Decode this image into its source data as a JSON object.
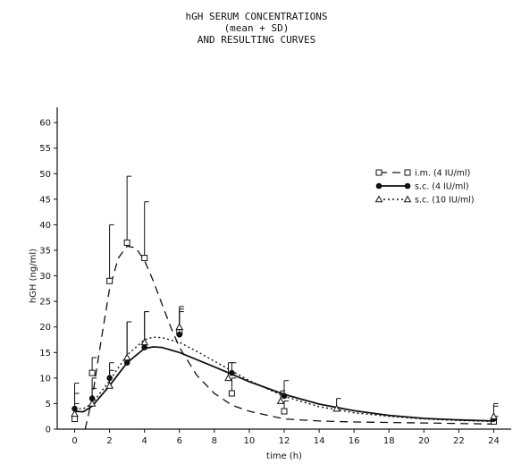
{
  "chart_data": {
    "type": "line",
    "title": [
      "hGH SERUM CONCENTRATIONS",
      "(mean + SD)",
      "AND RESULTING CURVES"
    ],
    "xlabel": "time (h)",
    "ylabel": "hGH (ng/ml)",
    "xlim": [
      -1,
      25
    ],
    "ylim": [
      0,
      63
    ],
    "x_ticks": [
      0,
      2,
      4,
      6,
      8,
      10,
      12,
      14,
      16,
      18,
      20,
      22,
      24
    ],
    "y_ticks": [
      0,
      5,
      10,
      15,
      20,
      25,
      30,
      35,
      40,
      45,
      50,
      55,
      60
    ],
    "legend_position": "top-right",
    "series": [
      {
        "name": "i.m. (4 IU/ml)",
        "marker": "square",
        "line_style": "dashed",
        "points": [
          {
            "x": 0,
            "y": 2,
            "sd": 3
          },
          {
            "x": 1,
            "y": 11,
            "sd": 3
          },
          {
            "x": 2,
            "y": 29,
            "sd": 11
          },
          {
            "x": 3,
            "y": 36.5,
            "sd": 13
          },
          {
            "x": 4,
            "y": 33.5,
            "sd": 11
          },
          {
            "x": 6,
            "y": 19,
            "sd": 5
          },
          {
            "x": 9,
            "y": 7,
            "sd": 3
          },
          {
            "x": 12,
            "y": 3.5,
            "sd": 2
          },
          {
            "x": 24,
            "y": 1.5,
            "sd": 1
          }
        ],
        "curve": [
          [
            0.6,
            0
          ],
          [
            1,
            6
          ],
          [
            1.5,
            17
          ],
          [
            2,
            27.5
          ],
          [
            2.5,
            33.5
          ],
          [
            3,
            35.8
          ],
          [
            3.5,
            35.5
          ],
          [
            4,
            33
          ],
          [
            4.5,
            29
          ],
          [
            5,
            24.5
          ],
          [
            5.5,
            20
          ],
          [
            6,
            16
          ],
          [
            7,
            10.5
          ],
          [
            8,
            7
          ],
          [
            9,
            4.7
          ],
          [
            10,
            3.5
          ],
          [
            12,
            2
          ],
          [
            14,
            1.6
          ],
          [
            16,
            1.4
          ],
          [
            20,
            1.2
          ],
          [
            24,
            1
          ]
        ]
      },
      {
        "name": "s.c. (4 IU/ml)",
        "marker": "filled-circle",
        "line_style": "solid",
        "points": [
          {
            "x": 0,
            "y": 4,
            "sd": 5
          },
          {
            "x": 1,
            "y": 6,
            "sd": 4
          },
          {
            "x": 2,
            "y": 10,
            "sd": 3
          },
          {
            "x": 3,
            "y": 13,
            "sd": 8
          },
          {
            "x": 4,
            "y": 16,
            "sd": 7
          },
          {
            "x": 6,
            "y": 18.5,
            "sd": 5
          },
          {
            "x": 9,
            "y": 11,
            "sd": 2
          },
          {
            "x": 12,
            "y": 6.5,
            "sd": 3
          },
          {
            "x": 24,
            "y": 2,
            "sd": 3
          }
        ],
        "curve": [
          [
            0,
            3.5
          ],
          [
            0.5,
            3.4
          ],
          [
            1,
            4.5
          ],
          [
            2,
            8.5
          ],
          [
            3,
            13
          ],
          [
            4,
            15.8
          ],
          [
            4.5,
            16.1
          ],
          [
            5,
            16
          ],
          [
            6,
            15
          ],
          [
            7,
            13.6
          ],
          [
            8,
            12.2
          ],
          [
            10,
            9.3
          ],
          [
            12,
            6.8
          ],
          [
            14,
            4.9
          ],
          [
            16,
            3.6
          ],
          [
            18,
            2.7
          ],
          [
            20,
            2.1
          ],
          [
            22,
            1.8
          ],
          [
            24,
            1.6
          ]
        ]
      },
      {
        "name": "s.c. (10 IU/ml)",
        "marker": "triangle",
        "line_style": "dotted",
        "points": [
          {
            "x": 0,
            "y": 3,
            "sd": 4
          },
          {
            "x": 1,
            "y": 5,
            "sd": 3
          },
          {
            "x": 2,
            "y": 8.5,
            "sd": 3
          },
          {
            "x": 3,
            "y": 14,
            "sd": 7
          },
          {
            "x": 4,
            "y": 17,
            "sd": 6
          },
          {
            "x": 6,
            "y": 20,
            "sd": 3
          },
          {
            "x": 8.8,
            "y": 10,
            "sd": 3
          },
          {
            "x": 11.8,
            "y": 5.5,
            "sd": 2
          },
          {
            "x": 15,
            "y": 4,
            "sd": 2
          },
          {
            "x": 24,
            "y": 2.5,
            "sd": 2
          }
        ],
        "curve": [
          [
            0,
            4
          ],
          [
            0.5,
            4
          ],
          [
            1,
            5
          ],
          [
            2,
            9.5
          ],
          [
            3,
            14.5
          ],
          [
            4,
            17.5
          ],
          [
            4.5,
            18
          ],
          [
            5,
            17.9
          ],
          [
            6,
            17
          ],
          [
            7,
            15.2
          ],
          [
            8,
            13.3
          ],
          [
            10,
            9.5
          ],
          [
            12,
            6.4
          ],
          [
            14,
            4.4
          ],
          [
            16,
            3.2
          ],
          [
            18,
            2.5
          ],
          [
            20,
            2
          ],
          [
            22,
            1.7
          ],
          [
            24,
            1.5
          ]
        ]
      }
    ]
  }
}
